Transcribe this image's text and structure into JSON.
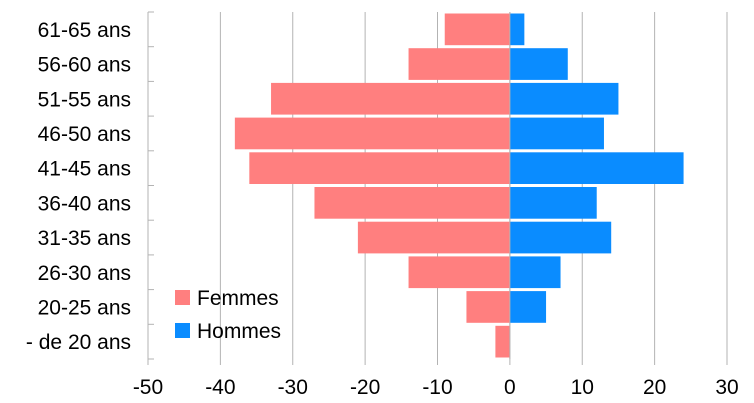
{
  "chart_data": {
    "type": "bar",
    "orientation": "horizontal",
    "stacked": "diverging",
    "categories": [
      "61-65 ans",
      "56-60 ans",
      "51-55 ans",
      "46-50 ans",
      "41-45 ans",
      "36-40 ans",
      "31-35 ans",
      "26-30 ans",
      "20-25 ans",
      "- de 20 ans"
    ],
    "series": [
      {
        "name": "Femmes",
        "color": "#ff7f7f",
        "values": [
          -9,
          -14,
          -33,
          -38,
          -36,
          -27,
          -21,
          -14,
          -6,
          -2
        ]
      },
      {
        "name": "Hommes",
        "color": "#0a8cff",
        "values": [
          2,
          8,
          15,
          13,
          24,
          12,
          14,
          7,
          5,
          0
        ]
      }
    ],
    "x_ticks": [
      -50,
      -40,
      -30,
      -20,
      -10,
      0,
      10,
      20,
      30
    ],
    "xlim": [
      -50,
      30
    ],
    "grid": "vertical",
    "legend_position": "bottom-left-inside",
    "title": "",
    "xlabel": "",
    "ylabel": ""
  }
}
